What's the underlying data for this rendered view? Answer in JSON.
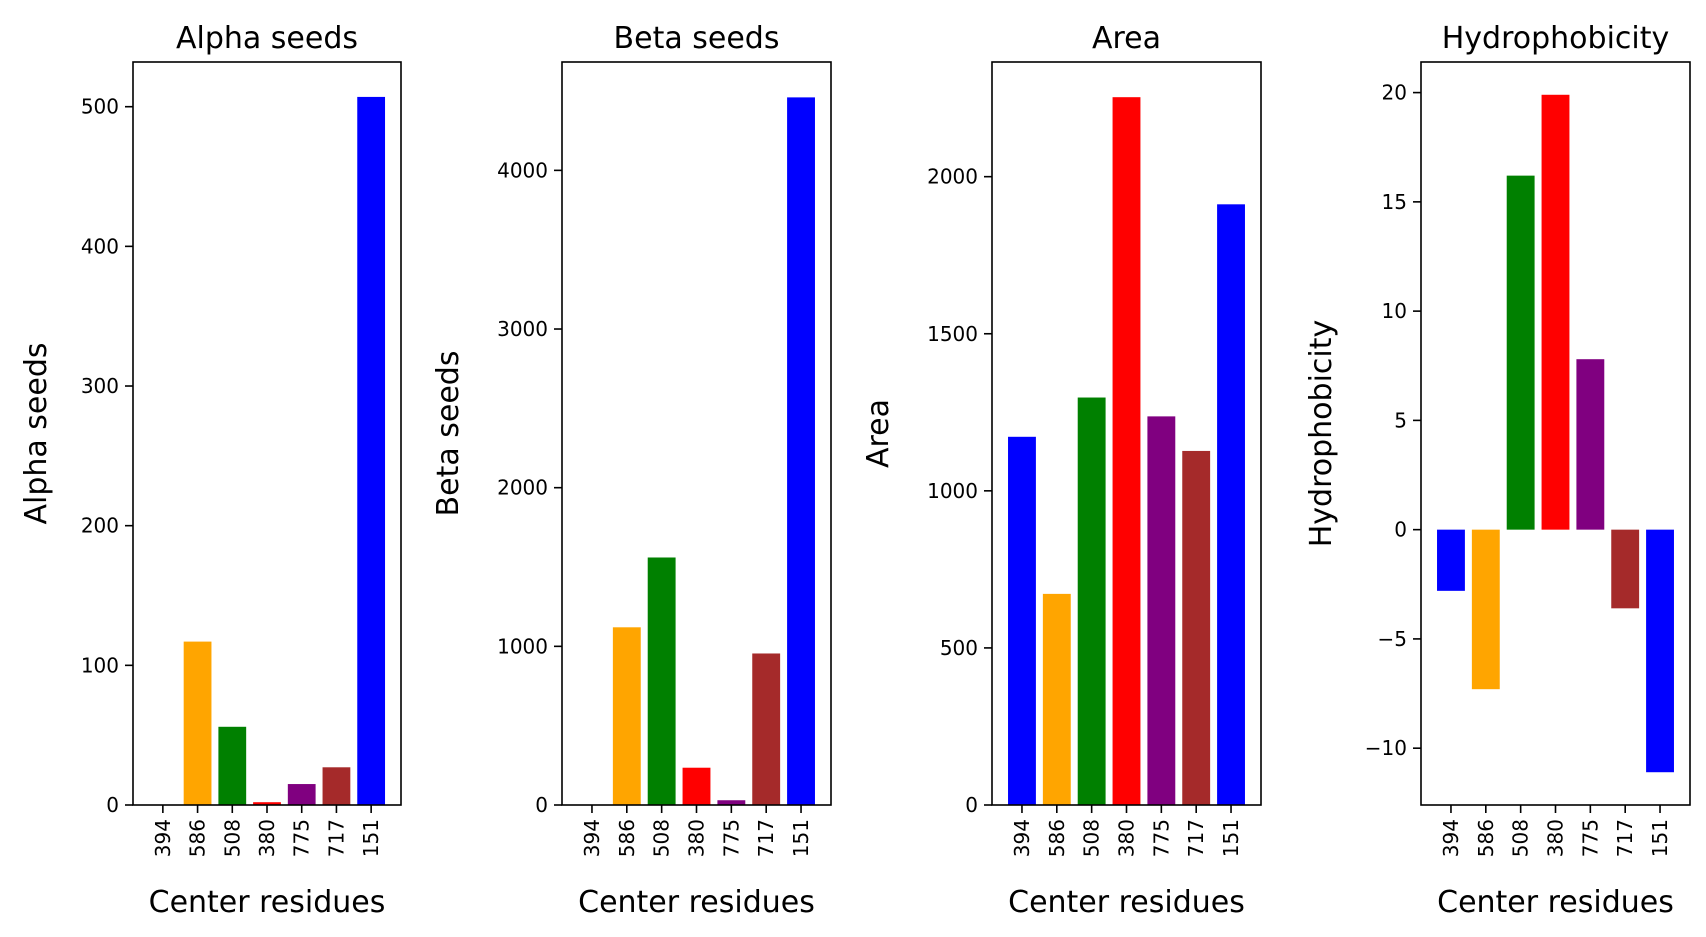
{
  "chart_data": [
    {
      "type": "bar",
      "title": "Alpha seeds",
      "xlabel": "Center residues",
      "ylabel": "Alpha seeds",
      "categories": [
        "394",
        "586",
        "508",
        "380",
        "775",
        "717",
        "151"
      ],
      "values": [
        0,
        117,
        56,
        2,
        15,
        27,
        507
      ],
      "colors": [
        "#0000ff",
        "#ffa500",
        "#008000",
        "#ff0000",
        "#800080",
        "#a52a2a",
        "#0000ff"
      ],
      "ylim": [
        0,
        532
      ],
      "yticks": [
        0,
        100,
        200,
        300,
        400,
        500
      ],
      "ytick_labels": [
        "0",
        "100",
        "200",
        "300",
        "400",
        "500"
      ]
    },
    {
      "type": "bar",
      "title": "Beta seeds",
      "xlabel": "Center residues",
      "ylabel": "Beta seeds",
      "categories": [
        "394",
        "586",
        "508",
        "380",
        "775",
        "717",
        "151"
      ],
      "values": [
        0,
        1120,
        1560,
        235,
        30,
        955,
        4460
      ],
      "colors": [
        "#0000ff",
        "#ffa500",
        "#008000",
        "#ff0000",
        "#800080",
        "#a52a2a",
        "#0000ff"
      ],
      "ylim": [
        0,
        4683
      ],
      "yticks": [
        0,
        1000,
        2000,
        3000,
        4000
      ],
      "ytick_labels": [
        "0",
        "1000",
        "2000",
        "3000",
        "4000"
      ]
    },
    {
      "type": "bar",
      "title": "Area",
      "xlabel": "Center residues",
      "ylabel": "Area",
      "categories": [
        "394",
        "586",
        "508",
        "380",
        "775",
        "717",
        "151"
      ],
      "values": [
        1172,
        672,
        1297,
        2253,
        1237,
        1127,
        1912
      ],
      "colors": [
        "#0000ff",
        "#ffa500",
        "#008000",
        "#ff0000",
        "#800080",
        "#a52a2a",
        "#0000ff"
      ],
      "ylim": [
        0,
        2365
      ],
      "yticks": [
        0,
        500,
        1000,
        1500,
        2000
      ],
      "ytick_labels": [
        "0",
        "500",
        "1000",
        "1500",
        "2000"
      ]
    },
    {
      "type": "bar",
      "title": "Hydrophobicity",
      "xlabel": "Center residues",
      "ylabel": "Hydrophobicity",
      "categories": [
        "394",
        "586",
        "508",
        "380",
        "775",
        "717",
        "151"
      ],
      "values": [
        -2.8,
        -7.3,
        16.2,
        19.9,
        7.8,
        -3.6,
        -11.1
      ],
      "colors": [
        "#0000ff",
        "#ffa500",
        "#008000",
        "#ff0000",
        "#800080",
        "#a52a2a",
        "#0000ff"
      ],
      "ylim": [
        -12.6,
        21.4
      ],
      "yticks": [
        -10,
        -5,
        0,
        5,
        10,
        15,
        20
      ],
      "ytick_labels": [
        "−10",
        "−5",
        "0",
        "5",
        "10",
        "15",
        "20"
      ]
    }
  ]
}
